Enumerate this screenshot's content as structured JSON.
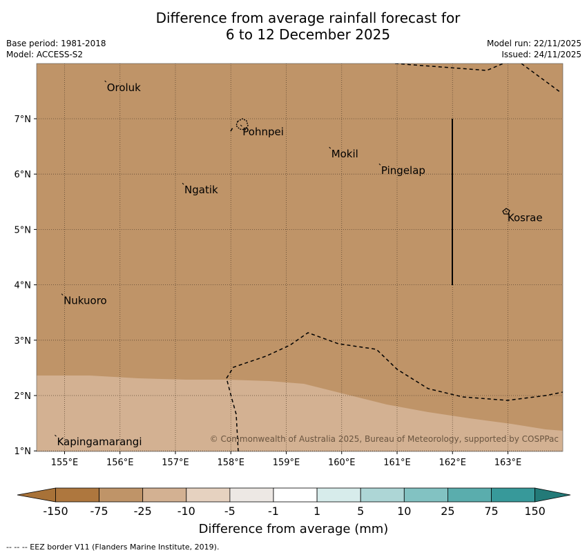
{
  "header": {
    "title_line1": "Difference from average rainfall forecast for",
    "title_line2": "6 to 12 December 2025",
    "base_period": "Base period: 1981-2018",
    "model": "Model: ACCESS-S2",
    "model_run": "Model run: 22/11/2025",
    "issued": "Issued: 24/11/2025"
  },
  "map": {
    "lon_ticks": [
      "155°E",
      "156°E",
      "157°E",
      "158°E",
      "159°E",
      "160°E",
      "161°E",
      "162°E",
      "163°E"
    ],
    "lat_ticks": [
      "7°N",
      "6°N",
      "5°N",
      "4°N",
      "3°N",
      "2°N",
      "1°N"
    ],
    "copyright": "© Commonwealth of Australia 2025, Bureau of Meteorology, supported by COSPPac",
    "places": [
      {
        "name": "Oroluk",
        "lon": 155.75,
        "lat": 7.65
      },
      {
        "name": "Pohnpei",
        "lon": 158.2,
        "lat": 6.85
      },
      {
        "name": "Mokil",
        "lon": 159.8,
        "lat": 6.45
      },
      {
        "name": "Pingelap",
        "lon": 160.7,
        "lat": 6.15
      },
      {
        "name": "Ngatik",
        "lon": 157.15,
        "lat": 5.8
      },
      {
        "name": "Kosrae",
        "lon": 162.98,
        "lat": 5.3
      },
      {
        "name": "Nukuoro",
        "lon": 154.97,
        "lat": 3.8
      },
      {
        "name": "Kapingamarangi",
        "lon": 154.85,
        "lat": 1.25
      }
    ],
    "fill_colors": {
      "minus_75_to_25": "#bf9468",
      "minus_25_to_10": "#d3b192"
    }
  },
  "colorbar": {
    "labels": [
      "-150",
      "-75",
      "-25",
      "-10",
      "-5",
      "-1",
      "1",
      "5",
      "10",
      "25",
      "75",
      "150"
    ],
    "colors": [
      "#a87238",
      "#ae773e",
      "#bf9468",
      "#d3b192",
      "#e6d2c0",
      "#ede8e4",
      "#ffffff",
      "#d7eceb",
      "#add6d6",
      "#82c2c2",
      "#5aadad",
      "#37999a",
      "#237a78"
    ],
    "title": "Difference from average (mm)"
  },
  "footnote": "--  --  -- EEZ border V11 (Flanders Marine Institute, 2019)."
}
